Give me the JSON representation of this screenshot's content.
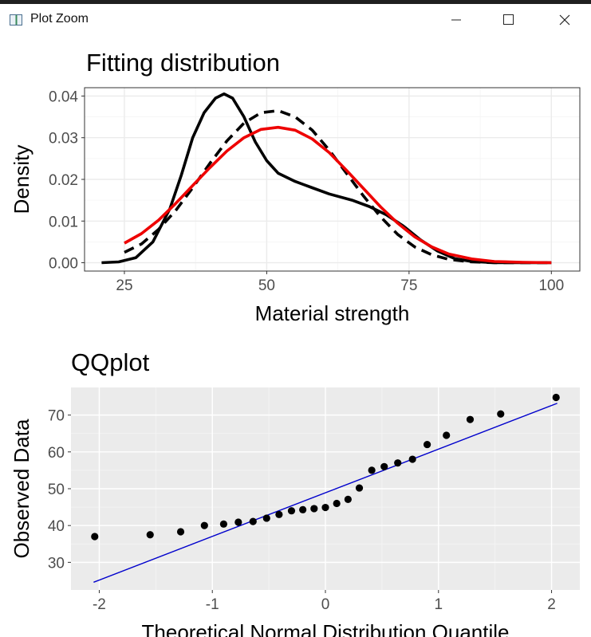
{
  "window": {
    "title": "Plot Zoom",
    "controls": [
      "minimize",
      "maximize",
      "close"
    ]
  },
  "chart_data": [
    {
      "type": "line",
      "title": "Fitting distribution",
      "xlabel": "Material strength",
      "ylabel": "Density",
      "xlim": [
        18,
        105
      ],
      "ylim": [
        -0.002,
        0.042
      ],
      "xticks": [
        25,
        50,
        75,
        100
      ],
      "xtick_labels": [
        "25",
        "50",
        "75",
        "100"
      ],
      "yticks": [
        0.0,
        0.01,
        0.02,
        0.03,
        0.04
      ],
      "ytick_labels": [
        "0.00",
        "0.01",
        "0.02",
        "0.03",
        "0.04"
      ],
      "grid": true,
      "theme": "white-background-with-border",
      "series": [
        {
          "style": "solid",
          "color": "#000000",
          "x": [
            21,
            24,
            27,
            30,
            33,
            35,
            37,
            39,
            41,
            42.5,
            44,
            46,
            48,
            50,
            52,
            55,
            58,
            61,
            65,
            68,
            71,
            74,
            77,
            80,
            83,
            86,
            90,
            95,
            100
          ],
          "y": [
            0.0,
            0.0002,
            0.0012,
            0.005,
            0.013,
            0.021,
            0.03,
            0.036,
            0.0395,
            0.0405,
            0.0395,
            0.035,
            0.029,
            0.0245,
            0.0215,
            0.0195,
            0.018,
            0.0165,
            0.015,
            0.0135,
            0.0115,
            0.0088,
            0.0055,
            0.0028,
            0.001,
            0.0003,
            0.0,
            0.0,
            0.0
          ]
        },
        {
          "style": "dashed",
          "color": "#000000",
          "x": [
            25,
            28,
            31,
            34,
            37,
            40,
            43,
            46,
            49,
            52,
            55,
            58,
            61,
            64,
            67,
            70,
            73,
            76,
            79,
            82,
            86,
            90,
            95,
            100
          ],
          "y": [
            0.0025,
            0.0045,
            0.008,
            0.0125,
            0.018,
            0.0238,
            0.0292,
            0.0335,
            0.036,
            0.0365,
            0.035,
            0.0318,
            0.027,
            0.0215,
            0.016,
            0.011,
            0.0068,
            0.0038,
            0.0019,
            0.0008,
            0.0002,
            0.0,
            0.0,
            0.0
          ]
        },
        {
          "style": "solid",
          "color": "#ee0000",
          "x": [
            25,
            28,
            31,
            34,
            37,
            40,
            43,
            46,
            49,
            52,
            55,
            58,
            61,
            64,
            67,
            70,
            73,
            76,
            79,
            82,
            86,
            90,
            95,
            100
          ],
          "y": [
            0.0047,
            0.007,
            0.0102,
            0.0142,
            0.0185,
            0.0228,
            0.0268,
            0.03,
            0.032,
            0.0325,
            0.0318,
            0.0297,
            0.0264,
            0.0222,
            0.0178,
            0.0134,
            0.0095,
            0.0062,
            0.0038,
            0.0021,
            0.0009,
            0.0003,
            0.0001,
            0.0
          ]
        }
      ]
    },
    {
      "type": "scatter",
      "title": "QQplot",
      "xlabel": "Theoretical Normal Distribution Quantile",
      "ylabel": "Observed Data",
      "xlim": [
        -2.25,
        2.25
      ],
      "ylim": [
        22.5,
        77.5
      ],
      "xticks": [
        -2,
        -1,
        0,
        1,
        2
      ],
      "xtick_labels": [
        "-2",
        "-1",
        "0",
        "1",
        "2"
      ],
      "yticks": [
        30,
        40,
        50,
        60,
        70
      ],
      "ytick_labels": [
        "30",
        "40",
        "50",
        "60",
        "70"
      ],
      "grid": true,
      "theme": "grey-panel",
      "points": {
        "color": "#000000",
        "x": [
          -2.04,
          -1.55,
          -1.28,
          -1.07,
          -0.9,
          -0.77,
          -0.64,
          -0.52,
          -0.41,
          -0.3,
          -0.2,
          -0.1,
          0.0,
          0.1,
          0.2,
          0.3,
          0.41,
          0.52,
          0.64,
          0.77,
          0.9,
          1.07,
          1.28,
          1.55,
          2.04
        ],
        "y": [
          37.0,
          37.5,
          38.3,
          40.0,
          40.4,
          40.9,
          41.1,
          42.0,
          43.0,
          44.0,
          44.3,
          44.6,
          44.9,
          46.0,
          47.1,
          50.2,
          55.0,
          56.0,
          57.0,
          58.0,
          62.0,
          64.5,
          68.8,
          70.3,
          74.8
        ]
      },
      "reference_line": {
        "color": "#0000cc",
        "x": [
          -2.05,
          2.05
        ],
        "y": [
          24.6,
          73.2
        ]
      }
    }
  ]
}
